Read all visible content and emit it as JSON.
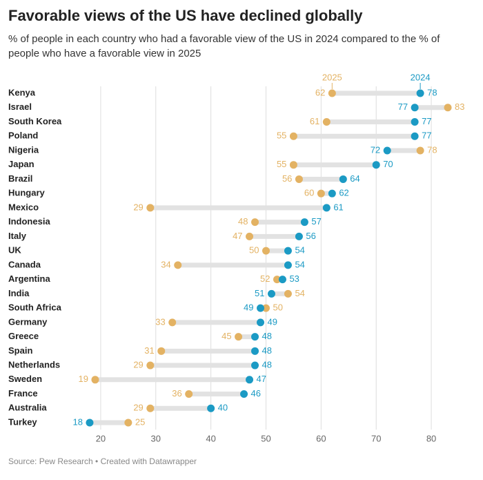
{
  "chart_data": {
    "type": "dumbbell",
    "title": "Favorable views of the US have declined globally",
    "subtitle": "% of people in each country who had a favorable view of the US in 2024 compared to the % of people who have a favorable view in 2025",
    "source": "Source: Pew Research • Created with Datawrapper",
    "categories": [
      "Kenya",
      "Israel",
      "South Korea",
      "Poland",
      "Nigeria",
      "Japan",
      "Brazil",
      "Hungary",
      "Mexico",
      "Indonesia",
      "Italy",
      "UK",
      "Canada",
      "Argentina",
      "India",
      "South Africa",
      "Germany",
      "Greece",
      "Spain",
      "Netherlands",
      "Sweden",
      "France",
      "Australia",
      "Turkey"
    ],
    "series": [
      {
        "name": "2025",
        "color": "#e3b263",
        "values": [
          62,
          83,
          61,
          55,
          78,
          55,
          56,
          60,
          29,
          48,
          47,
          50,
          34,
          52,
          54,
          50,
          33,
          45,
          31,
          29,
          19,
          36,
          29,
          25
        ]
      },
      {
        "name": "2024",
        "color": "#1b9ac4",
        "values": [
          78,
          77,
          77,
          77,
          72,
          70,
          64,
          62,
          61,
          57,
          56,
          54,
          54,
          53,
          51,
          49,
          49,
          48,
          48,
          48,
          47,
          46,
          40,
          18
        ]
      }
    ],
    "xlim": [
      15,
      85
    ],
    "xticks": [
      20,
      30,
      40,
      50,
      60,
      70,
      80
    ],
    "grid": true
  }
}
